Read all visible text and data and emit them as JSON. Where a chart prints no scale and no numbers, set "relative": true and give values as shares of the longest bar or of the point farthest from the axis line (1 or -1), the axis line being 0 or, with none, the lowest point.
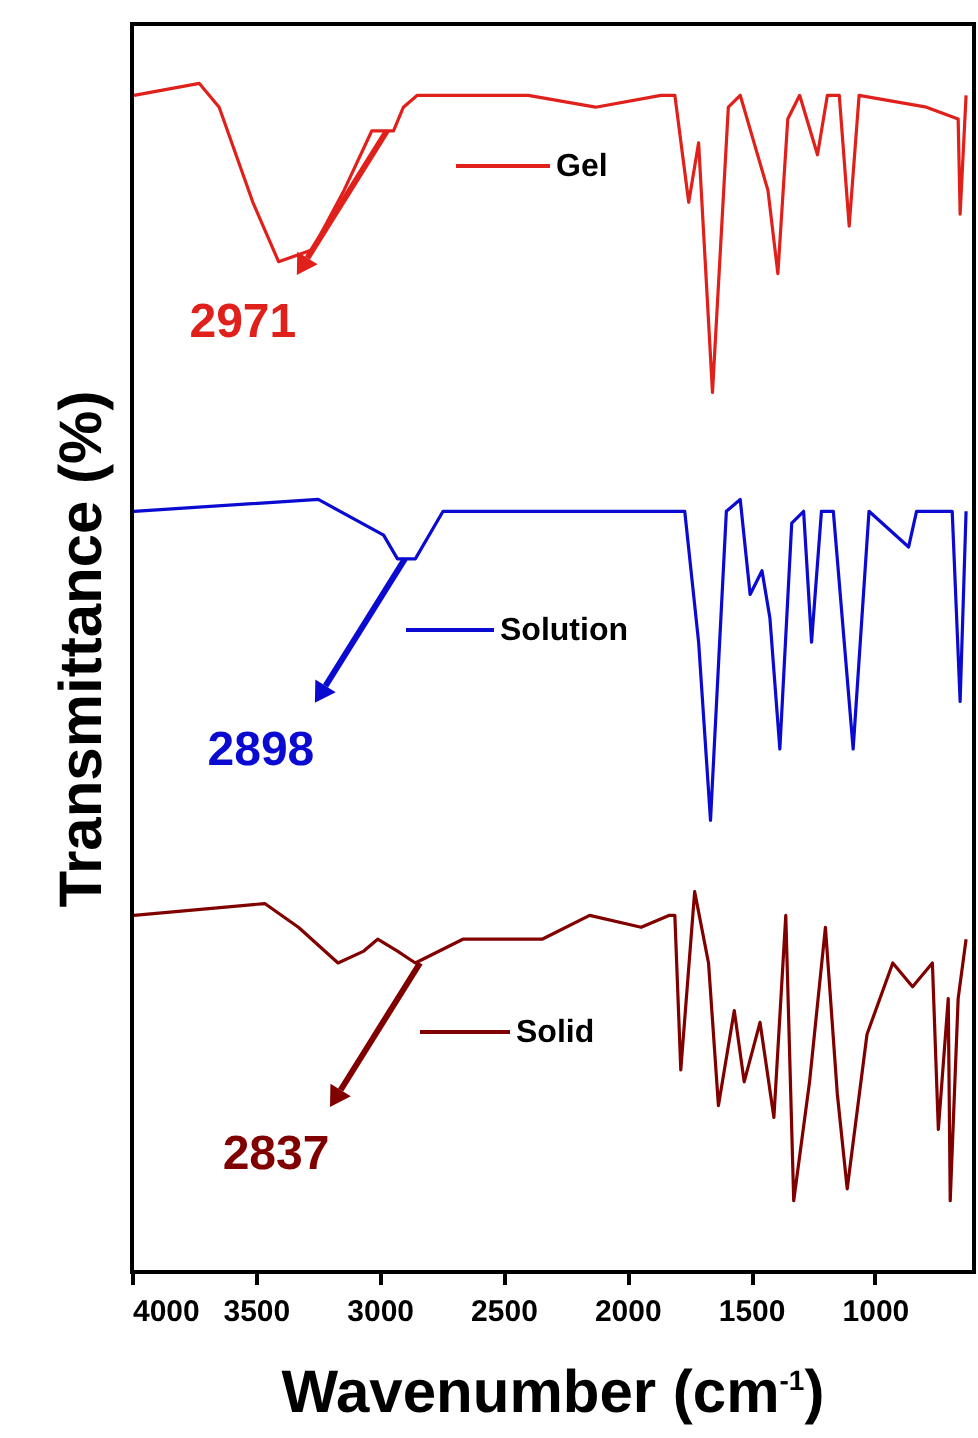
{
  "chart_data": {
    "type": "line",
    "relative": true,
    "xlabel": "Wavenumber (cm$^{-1}$)",
    "ylabel": "Transmittance (%)",
    "legend": "top",
    "line_style": "solid",
    "marker": "none",
    "xlim": [
      4000,
      600
    ],
    "xticks": [
      4000,
      3500,
      3000,
      2500,
      2000,
      1500,
      1000
    ],
    "series": [
      {
        "name": "Gel",
        "color": "#e0201b",
        "x": [
          3992,
          3728,
          3648,
          3512,
          3408,
          3272,
          3144,
          3032,
          2944,
          2904,
          2848,
          2400,
          2128,
          1864,
          1808,
          1752,
          1712,
          1656,
          1592,
          1544,
          1488,
          1432,
          1392,
          1352,
          1304,
          1232,
          1192,
          1144,
          1104,
          1064,
          792,
          664,
          656,
          632
        ],
        "values": [
          0.99,
          1,
          0.98,
          0.9,
          0.85,
          0.86,
          0.91,
          0.96,
          0.96,
          0.98,
          0.99,
          0.99,
          0.98,
          0.99,
          0.99,
          0.9,
          0.95,
          0.74,
          0.98,
          0.99,
          0.95,
          0.91,
          0.84,
          0.97,
          0.99,
          0.94,
          0.99,
          0.99,
          0.88,
          0.99,
          0.98,
          0.97,
          0.89,
          0.99
        ]
      },
      {
        "name": "Solution",
        "color": "#0a0ad0",
        "x": [
          3992,
          3248,
          2984,
          2928,
          2888,
          2856,
          2744,
          1864,
          1768,
          1712,
          1664,
          1600,
          1544,
          1504,
          1456,
          1424,
          1384,
          1336,
          1288,
          1256,
          1216,
          1168,
          1088,
          1024,
          864,
          832,
          688,
          656,
          632
        ],
        "values": [
          0.64,
          0.65,
          0.62,
          0.6,
          0.6,
          0.6,
          0.64,
          0.64,
          0.64,
          0.53,
          0.38,
          0.64,
          0.65,
          0.57,
          0.59,
          0.55,
          0.44,
          0.63,
          0.64,
          0.53,
          0.64,
          0.64,
          0.44,
          0.64,
          0.61,
          0.64,
          0.64,
          0.48,
          0.64
        ]
      },
      {
        "name": "Solid",
        "color": "#800000",
        "x": [
          3992,
          3464,
          3328,
          3168,
          3064,
          3008,
          2928,
          2856,
          2664,
          2344,
          2152,
          1944,
          1832,
          1808,
          1784,
          1728,
          1672,
          1632,
          1568,
          1528,
          1464,
          1408,
          1360,
          1328,
          1264,
          1200,
          1152,
          1112,
          1032,
          928,
          848,
          768,
          744,
          704,
          696,
          664,
          632
        ],
        "values": [
          0.3,
          0.31,
          0.29,
          0.26,
          0.27,
          0.28,
          0.27,
          0.26,
          0.28,
          0.28,
          0.3,
          0.29,
          0.3,
          0.3,
          0.17,
          0.32,
          0.26,
          0.14,
          0.22,
          0.16,
          0.21,
          0.13,
          0.3,
          0.06,
          0.16,
          0.29,
          0.15,
          0.07,
          0.2,
          0.26,
          0.24,
          0.26,
          0.12,
          0.23,
          0.06,
          0.23,
          0.28
        ]
      }
    ],
    "annotations": [
      {
        "text": "2971",
        "x": 2971,
        "y": 0.96
      },
      {
        "text": "2898",
        "x": 2898,
        "y": 0.6
      },
      {
        "text": "2837",
        "x": 2837,
        "y": 0.26
      }
    ]
  }
}
